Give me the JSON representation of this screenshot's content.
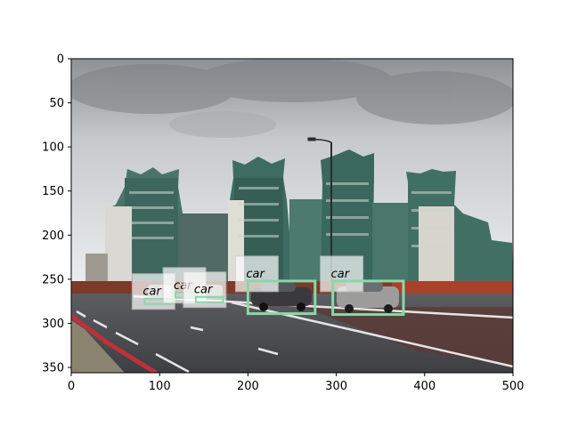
{
  "axes": {
    "x_ticks": [
      "0",
      "100",
      "200",
      "300",
      "400",
      "500"
    ],
    "y_ticks": [
      "0",
      "50",
      "100",
      "150",
      "200",
      "250",
      "300",
      "350"
    ],
    "x_range": [
      0,
      500
    ],
    "y_range": [
      0,
      356
    ]
  },
  "detections": [
    {
      "label": "car",
      "x_range": [
        83,
        115
      ],
      "y_range": [
        274,
        272
      ]
    },
    {
      "label": "car",
      "x_range": [
        118,
        148
      ],
      "y_range": [
        265,
        270
      ]
    },
    {
      "label": "car",
      "x_range": [
        141,
        172
      ],
      "y_range": [
        270,
        272
      ]
    },
    {
      "label": "car",
      "x_range": [
        200,
        276
      ],
      "y_range": [
        252,
        289
      ]
    },
    {
      "label": "car",
      "x_range": [
        296,
        376
      ],
      "y_range": [
        252,
        290
      ]
    }
  ],
  "colors": {
    "box_stroke": "#88d8a8",
    "label_bg": "#ffffff",
    "sky_top": "#9fa3a6",
    "sky_bottom": "#e7e9ea",
    "building": "#3f6d63",
    "road": "#4a4b4f"
  }
}
